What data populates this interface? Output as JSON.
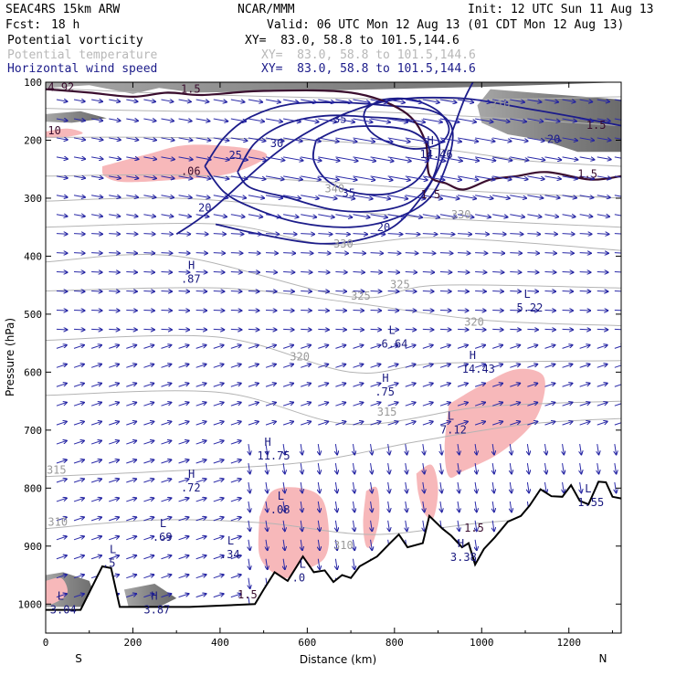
{
  "header": {
    "model": "SEAC4RS 15km ARW",
    "fcst_label": "Fcst:",
    "fcst_value": "18 h",
    "center": "NCAR/MMM",
    "init": "Init: 12 UTC Sun 11 Aug 13",
    "valid": "Valid: 06 UTC Mon 12 Aug 13 (01 CDT Mon 12 Aug 13)",
    "fields": [
      {
        "name": "Potential vorticity",
        "xy": "XY=  83.0, 58.8 to 101.5,144.6",
        "color": "#000000"
      },
      {
        "name": "Potential temperature",
        "xy": "XY=  83.0, 58.8 to 101.5,144.6",
        "color": "#b8b8b8"
      },
      {
        "name": "Horizontal wind speed",
        "xy": "XY=  83.0, 58.8 to 101.5,144.6",
        "color": "#1c1c8a"
      }
    ]
  },
  "chart_data": {
    "type": "cross-section",
    "ylabel": "Pressure (hPa)",
    "xlabel": "Distance (km)",
    "x_ticks": [
      "0",
      "200",
      "400",
      "600",
      "800",
      "1000",
      "1200"
    ],
    "y_ticks": [
      "100",
      "200",
      "300",
      "400",
      "500",
      "600",
      "700",
      "800",
      "900",
      "1000"
    ],
    "xlim": [
      0,
      1320
    ],
    "ylim": [
      1050,
      100
    ],
    "left_end": "S",
    "right_end": "N",
    "terrain_pressure": [
      [
        0,
        1010
      ],
      [
        80,
        1010
      ],
      [
        130,
        935
      ],
      [
        150,
        938
      ],
      [
        170,
        1005
      ],
      [
        330,
        1005
      ],
      [
        480,
        1000
      ],
      [
        500,
        975
      ],
      [
        525,
        945
      ],
      [
        555,
        960
      ],
      [
        590,
        918
      ],
      [
        615,
        945
      ],
      [
        640,
        942
      ],
      [
        660,
        962
      ],
      [
        680,
        950
      ],
      [
        700,
        955
      ],
      [
        720,
        935
      ],
      [
        760,
        918
      ],
      [
        790,
        895
      ],
      [
        810,
        880
      ],
      [
        830,
        902
      ],
      [
        865,
        895
      ],
      [
        880,
        848
      ],
      [
        910,
        870
      ],
      [
        930,
        882
      ],
      [
        955,
        902
      ],
      [
        970,
        895
      ],
      [
        985,
        932
      ],
      [
        1005,
        905
      ],
      [
        1030,
        885
      ],
      [
        1060,
        858
      ],
      [
        1090,
        848
      ],
      [
        1110,
        830
      ],
      [
        1135,
        802
      ],
      [
        1160,
        814
      ],
      [
        1185,
        815
      ],
      [
        1205,
        795
      ],
      [
        1225,
        822
      ],
      [
        1245,
        828
      ],
      [
        1268,
        789
      ],
      [
        1285,
        790
      ],
      [
        1300,
        815
      ],
      [
        1320,
        818
      ]
    ],
    "wind_speed_contours": [
      {
        "level": "20",
        "points": [
          [
            300,
            362
          ],
          [
            380,
            320
          ],
          [
            560,
            205
          ],
          [
            750,
            138
          ],
          [
            935,
            127
          ],
          [
            1100,
            145
          ],
          [
            1250,
            165
          ],
          [
            1320,
            175
          ]
        ]
      },
      {
        "level": "20",
        "points": [
          [
            390,
            345
          ],
          [
            490,
            362
          ],
          [
            620,
            378
          ],
          [
            720,
            372
          ],
          [
            800,
            348
          ],
          [
            860,
            300
          ],
          [
            900,
            250
          ],
          [
            930,
            190
          ],
          [
            960,
            130
          ],
          [
            980,
            100
          ]
        ]
      },
      {
        "level": "25",
        "points": [
          [
            365,
            245
          ],
          [
            410,
            195
          ],
          [
            470,
            160
          ],
          [
            560,
            138
          ],
          [
            680,
            135
          ],
          [
            780,
            140
          ],
          [
            880,
            148
          ],
          [
            930,
            175
          ],
          [
            925,
            230
          ],
          [
            880,
            300
          ],
          [
            800,
            335
          ],
          [
            700,
            350
          ],
          [
            580,
            342
          ],
          [
            480,
            318
          ],
          [
            410,
            290
          ],
          [
            365,
            245
          ]
        ]
      },
      {
        "level": "30",
        "points": [
          [
            440,
            255
          ],
          [
            480,
            205
          ],
          [
            550,
            172
          ],
          [
            640,
            158
          ],
          [
            740,
            160
          ],
          [
            840,
            168
          ],
          [
            900,
            198
          ],
          [
            890,
            262
          ],
          [
            840,
            305
          ],
          [
            760,
            322
          ],
          [
            660,
            320
          ],
          [
            560,
            300
          ],
          [
            470,
            282
          ],
          [
            440,
            255
          ]
        ]
      },
      {
        "level": "35",
        "points": [
          [
            620,
            200
          ],
          [
            680,
            180
          ],
          [
            760,
            176
          ],
          [
            840,
            185
          ],
          [
            880,
            215
          ],
          [
            860,
            262
          ],
          [
            800,
            290
          ],
          [
            720,
            292
          ],
          [
            650,
            272
          ],
          [
            615,
            235
          ],
          [
            620,
            200
          ]
        ]
      },
      {
        "level": "35",
        "points": [
          [
            735,
            145
          ],
          [
            775,
            130
          ],
          [
            840,
            130
          ],
          [
            900,
            150
          ],
          [
            925,
            180
          ],
          [
            905,
            205
          ],
          [
            850,
            215
          ],
          [
            790,
            205
          ],
          [
            745,
            185
          ],
          [
            730,
            160
          ],
          [
            735,
            145
          ]
        ]
      }
    ],
    "potential_temperature_labels": [
      {
        "text": "315",
        "x": 2,
        "p": 775
      },
      {
        "text": "310",
        "x": 5,
        "p": 865
      },
      {
        "text": "320",
        "x": 560,
        "p": 580
      },
      {
        "text": "315",
        "x": 760,
        "p": 675
      },
      {
        "text": "325",
        "x": 700,
        "p": 475
      },
      {
        "text": "325",
        "x": 790,
        "p": 455
      },
      {
        "text": "320",
        "x": 960,
        "p": 520
      },
      {
        "text": "330",
        "x": 660,
        "p": 385
      },
      {
        "text": "330",
        "x": 930,
        "p": 335
      },
      {
        "text": "340",
        "x": 640,
        "p": 290
      },
      {
        "text": "310",
        "x": 660,
        "p": 905
      },
      {
        "text": "310",
        "x": 1020,
        "p": 145
      }
    ],
    "pv_labels": [
      {
        "text": "4.92",
        "x": 5,
        "p": 115
      },
      {
        "text": "10",
        "x": 5,
        "p": 190
      },
      {
        "text": "1.5",
        "x": 310,
        "p": 118
      },
      {
        "text": ".06",
        "x": 310,
        "p": 260
      },
      {
        "text": "1.5",
        "x": 860,
        "p": 300
      },
      {
        "text": "1.5",
        "x": 1220,
        "p": 265
      },
      {
        "text": "1.5",
        "x": 960,
        "p": 875
      },
      {
        "text": "1.5",
        "x": 440,
        "p": 990
      },
      {
        "text": "1.5",
        "x": 1240,
        "p": 180
      }
    ],
    "wind_speed_labels": [
      {
        "text": "25",
        "x": 420,
        "p": 232
      },
      {
        "text": "30",
        "x": 515,
        "p": 212
      },
      {
        "text": "35",
        "x": 660,
        "p": 170
      },
      {
        "text": "35",
        "x": 680,
        "p": 298
      },
      {
        "text": "20",
        "x": 350,
        "p": 323
      },
      {
        "text": "20",
        "x": 760,
        "p": 357
      },
      {
        "text": "20",
        "x": 1150,
        "p": 205
      }
    ],
    "extrema": [
      {
        "type": "H",
        "value": ".87",
        "x": 310,
        "p": 430
      },
      {
        "type": "H",
        "value": "14.46",
        "x": 858,
        "p": 215
      },
      {
        "type": "H",
        "value": ".75",
        "x": 755,
        "p": 625
      },
      {
        "type": "H",
        "value": "14.43",
        "x": 955,
        "p": 585
      },
      {
        "type": "H",
        "value": "11.75",
        "x": 485,
        "p": 735
      },
      {
        "type": "H",
        "value": ".72",
        "x": 310,
        "p": 790
      },
      {
        "type": "H",
        "value": "3.38",
        "x": 928,
        "p": 910
      },
      {
        "type": "H",
        "value": "3.87",
        "x": 225,
        "p": 1000
      },
      {
        "type": "L",
        "value": "5.22",
        "x": 1080,
        "p": 480
      },
      {
        "type": "L",
        "value": "6.64",
        "x": 770,
        "p": 542
      },
      {
        "type": "L",
        "value": "7.12",
        "x": 905,
        "p": 690
      },
      {
        "type": "L",
        "value": ".08",
        "x": 515,
        "p": 828
      },
      {
        "type": "L",
        "value": ".69",
        "x": 245,
        "p": 875
      },
      {
        "type": "L",
        "value": ".34",
        "x": 400,
        "p": 905
      },
      {
        "type": "L",
        "value": ".5",
        "x": 130,
        "p": 920
      },
      {
        "type": "L",
        "value": ".0",
        "x": 565,
        "p": 945
      },
      {
        "type": "L",
        "value": "3.04",
        "x": 10,
        "p": 1000
      },
      {
        "type": "L",
        "value": "1.55",
        "x": 1220,
        "p": 815
      }
    ],
    "pv_shaded_regions": [
      [
        [
          130,
          245
        ],
        [
          230,
          225
        ],
        [
          330,
          208
        ],
        [
          470,
          215
        ],
        [
          505,
          230
        ],
        [
          420,
          258
        ],
        [
          300,
          268
        ],
        [
          180,
          272
        ],
        [
          135,
          262
        ]
      ],
      [
        [
          0,
          185
        ],
        [
          50,
          180
        ],
        [
          85,
          188
        ],
        [
          40,
          195
        ],
        [
          0,
          195
        ]
      ],
      [
        [
          925,
          655
        ],
        [
          1010,
          618
        ],
        [
          1080,
          595
        ],
        [
          1140,
          605
        ],
        [
          1140,
          650
        ],
        [
          1110,
          695
        ],
        [
          1040,
          740
        ],
        [
          960,
          770
        ],
        [
          925,
          780
        ],
        [
          915,
          730
        ]
      ],
      [
        [
          850,
          775
        ],
        [
          885,
          760
        ],
        [
          900,
          800
        ],
        [
          890,
          850
        ],
        [
          870,
          845
        ],
        [
          855,
          810
        ]
      ],
      [
        [
          490,
          850
        ],
        [
          520,
          805
        ],
        [
          585,
          800
        ],
        [
          635,
          820
        ],
        [
          650,
          880
        ],
        [
          640,
          920
        ],
        [
          600,
          940
        ],
        [
          555,
          955
        ],
        [
          520,
          945
        ],
        [
          490,
          915
        ]
      ],
      [
        [
          735,
          805
        ],
        [
          760,
          800
        ],
        [
          765,
          850
        ],
        [
          750,
          895
        ],
        [
          735,
          900
        ],
        [
          728,
          860
        ]
      ],
      [
        [
          0,
          960
        ],
        [
          35,
          955
        ],
        [
          50,
          975
        ],
        [
          40,
          990
        ],
        [
          0,
          1000
        ]
      ]
    ],
    "pv_dark_regions": [
      [
        [
          0,
          110
        ],
        [
          100,
          105
        ],
        [
          200,
          120
        ],
        [
          260,
          110
        ],
        [
          340,
          118
        ],
        [
          600,
          115
        ],
        [
          1000,
          108
        ],
        [
          1320,
          100
        ],
        [
          1320,
          100
        ],
        [
          0,
          100
        ]
      ],
      [
        [
          1020,
          112
        ],
        [
          1150,
          120
        ],
        [
          1320,
          130
        ],
        [
          1320,
          220
        ],
        [
          1220,
          220
        ],
        [
          1140,
          200
        ],
        [
          1060,
          190
        ],
        [
          1000,
          170
        ],
        [
          990,
          140
        ]
      ],
      [
        [
          0,
          155
        ],
        [
          80,
          150
        ],
        [
          140,
          162
        ],
        [
          60,
          170
        ],
        [
          0,
          168
        ]
      ],
      [
        [
          0,
          950
        ],
        [
          40,
          945
        ],
        [
          100,
          960
        ],
        [
          115,
          990
        ],
        [
          80,
          1005
        ],
        [
          0,
          1005
        ]
      ],
      [
        [
          180,
          975
        ],
        [
          250,
          965
        ],
        [
          300,
          990
        ],
        [
          260,
          1005
        ],
        [
          190,
          1005
        ]
      ]
    ]
  }
}
